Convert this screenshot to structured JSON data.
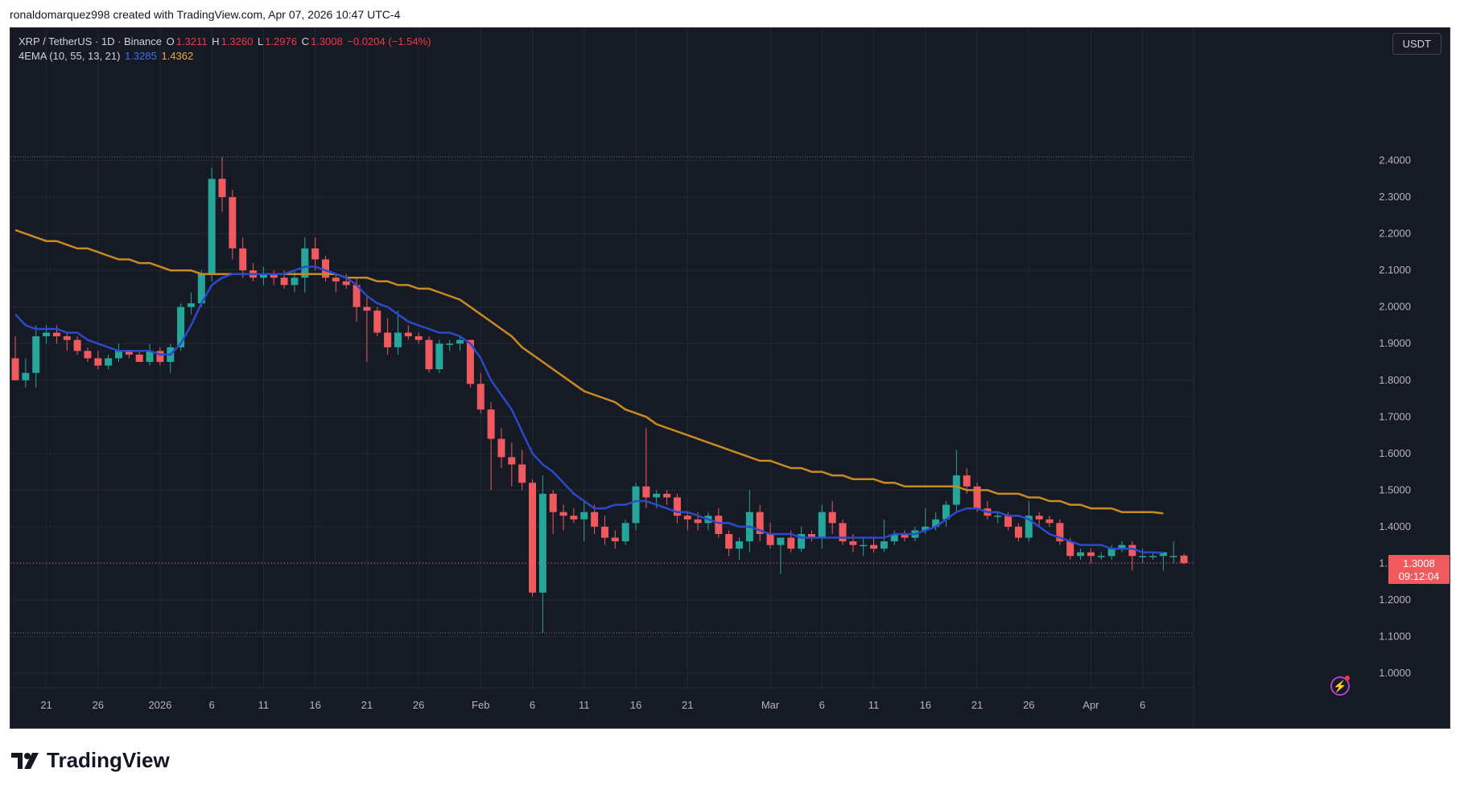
{
  "header": {
    "attribution": "ronaldomarquez998 created with TradingView.com, Apr 07, 2026 10:47 UTC-4"
  },
  "legend": {
    "symbol": "XRP / TetherUS · 1D · Binance",
    "o_label": "O",
    "o_value": "1.3211",
    "h_label": "H",
    "h_value": "1.3260",
    "l_label": "L",
    "l_value": "1.2976",
    "c_label": "C",
    "c_value": "1.3008",
    "change": "−0.0204 (−1.54%)",
    "indicator": "4EMA (10, 55, 13, 21)",
    "ema_fast": "1.3285",
    "ema_slow": "1.4362"
  },
  "currency": "USDT",
  "price_tag": {
    "price": "1.3008",
    "countdown": "09:12:04"
  },
  "branding": {
    "logo_text": "TradingView"
  },
  "colors": {
    "up": "#26a69a",
    "down": "#f05a5e",
    "ema_fast": "#2b4acb",
    "ema_slow": "#c98a1f",
    "background": "#161a25"
  },
  "chart_data": {
    "type": "candlestick",
    "y_ticks": [
      "1.0000",
      "1.1000",
      "1.2000",
      "1.3000",
      "1.4000",
      "1.5000",
      "1.6000",
      "1.7000",
      "1.8000",
      "1.9000",
      "2.0000",
      "2.1000",
      "2.2000",
      "2.3000",
      "2.4000"
    ],
    "ylim": [
      1.0,
      2.5
    ],
    "x_ticks": [
      {
        "label": "21",
        "index": 3
      },
      {
        "label": "26",
        "index": 8
      },
      {
        "label": "2026",
        "index": 14
      },
      {
        "label": "6",
        "index": 19
      },
      {
        "label": "11",
        "index": 24
      },
      {
        "label": "16",
        "index": 29
      },
      {
        "label": "21",
        "index": 34
      },
      {
        "label": "26",
        "index": 39
      },
      {
        "label": "Feb",
        "index": 45
      },
      {
        "label": "6",
        "index": 50
      },
      {
        "label": "11",
        "index": 55
      },
      {
        "label": "16",
        "index": 60
      },
      {
        "label": "21",
        "index": 65
      },
      {
        "label": "Mar",
        "index": 73
      },
      {
        "label": "6",
        "index": 78
      },
      {
        "label": "11",
        "index": 83
      },
      {
        "label": "16",
        "index": 88
      },
      {
        "label": "21",
        "index": 93
      },
      {
        "label": "26",
        "index": 98
      },
      {
        "label": "Apr",
        "index": 104
      },
      {
        "label": "6",
        "index": 109
      }
    ],
    "candles": [
      [
        1.86,
        1.92,
        1.8,
        1.8
      ],
      [
        1.8,
        1.86,
        1.78,
        1.82
      ],
      [
        1.82,
        1.95,
        1.78,
        1.92
      ],
      [
        1.92,
        1.95,
        1.9,
        1.93
      ],
      [
        1.93,
        1.95,
        1.9,
        1.92
      ],
      [
        1.92,
        1.93,
        1.88,
        1.91
      ],
      [
        1.91,
        1.92,
        1.87,
        1.88
      ],
      [
        1.88,
        1.89,
        1.85,
        1.86
      ],
      [
        1.86,
        1.88,
        1.83,
        1.84
      ],
      [
        1.84,
        1.87,
        1.83,
        1.86
      ],
      [
        1.86,
        1.9,
        1.85,
        1.88
      ],
      [
        1.88,
        1.88,
        1.86,
        1.87
      ],
      [
        1.87,
        1.88,
        1.85,
        1.85
      ],
      [
        1.85,
        1.9,
        1.84,
        1.88
      ],
      [
        1.88,
        1.89,
        1.84,
        1.85
      ],
      [
        1.85,
        1.9,
        1.82,
        1.89
      ],
      [
        1.89,
        2.01,
        1.88,
        2.0
      ],
      [
        2.0,
        2.04,
        1.98,
        2.01
      ],
      [
        2.01,
        2.1,
        2.0,
        2.09
      ],
      [
        2.09,
        2.38,
        2.07,
        2.35
      ],
      [
        2.35,
        2.41,
        2.26,
        2.3
      ],
      [
        2.3,
        2.32,
        2.13,
        2.16
      ],
      [
        2.16,
        2.19,
        2.08,
        2.1
      ],
      [
        2.1,
        2.12,
        2.07,
        2.08
      ],
      [
        2.08,
        2.11,
        2.06,
        2.09
      ],
      [
        2.09,
        2.1,
        2.06,
        2.08
      ],
      [
        2.08,
        2.1,
        2.05,
        2.06
      ],
      [
        2.06,
        2.1,
        2.04,
        2.08
      ],
      [
        2.08,
        2.19,
        2.04,
        2.16
      ],
      [
        2.16,
        2.19,
        2.1,
        2.13
      ],
      [
        2.13,
        2.14,
        2.07,
        2.08
      ],
      [
        2.08,
        2.09,
        2.04,
        2.07
      ],
      [
        2.07,
        2.09,
        2.05,
        2.06
      ],
      [
        2.06,
        2.08,
        1.96,
        2.0
      ],
      [
        2.0,
        2.03,
        1.85,
        1.99
      ],
      [
        1.99,
        2.0,
        1.92,
        1.93
      ],
      [
        1.93,
        1.97,
        1.87,
        1.89
      ],
      [
        1.89,
        1.99,
        1.87,
        1.93
      ],
      [
        1.93,
        1.95,
        1.91,
        1.92
      ],
      [
        1.92,
        1.93,
        1.9,
        1.91
      ],
      [
        1.91,
        1.92,
        1.82,
        1.83
      ],
      [
        1.83,
        1.91,
        1.82,
        1.9
      ],
      [
        1.9,
        1.91,
        1.88,
        1.9
      ],
      [
        1.9,
        1.92,
        1.88,
        1.91
      ],
      [
        1.91,
        1.91,
        1.78,
        1.79
      ],
      [
        1.79,
        1.82,
        1.71,
        1.72
      ],
      [
        1.72,
        1.74,
        1.5,
        1.64
      ],
      [
        1.64,
        1.67,
        1.56,
        1.59
      ],
      [
        1.59,
        1.63,
        1.51,
        1.57
      ],
      [
        1.57,
        1.61,
        1.5,
        1.52
      ],
      [
        1.52,
        1.53,
        1.21,
        1.22
      ],
      [
        1.22,
        1.54,
        1.11,
        1.49
      ],
      [
        1.49,
        1.5,
        1.38,
        1.44
      ],
      [
        1.44,
        1.46,
        1.39,
        1.43
      ],
      [
        1.43,
        1.45,
        1.41,
        1.42
      ],
      [
        1.42,
        1.47,
        1.36,
        1.44
      ],
      [
        1.44,
        1.46,
        1.38,
        1.4
      ],
      [
        1.4,
        1.43,
        1.35,
        1.37
      ],
      [
        1.37,
        1.39,
        1.34,
        1.36
      ],
      [
        1.36,
        1.42,
        1.35,
        1.41
      ],
      [
        1.41,
        1.52,
        1.39,
        1.51
      ],
      [
        1.51,
        1.67,
        1.45,
        1.48
      ],
      [
        1.48,
        1.5,
        1.45,
        1.49
      ],
      [
        1.49,
        1.5,
        1.46,
        1.48
      ],
      [
        1.48,
        1.49,
        1.41,
        1.43
      ],
      [
        1.43,
        1.44,
        1.39,
        1.42
      ],
      [
        1.42,
        1.44,
        1.39,
        1.41
      ],
      [
        1.41,
        1.44,
        1.39,
        1.43
      ],
      [
        1.43,
        1.45,
        1.37,
        1.38
      ],
      [
        1.38,
        1.39,
        1.32,
        1.34
      ],
      [
        1.34,
        1.37,
        1.31,
        1.36
      ],
      [
        1.36,
        1.5,
        1.33,
        1.44
      ],
      [
        1.44,
        1.46,
        1.36,
        1.38
      ],
      [
        1.38,
        1.41,
        1.34,
        1.35
      ],
      [
        1.35,
        1.36,
        1.27,
        1.37
      ],
      [
        1.37,
        1.39,
        1.33,
        1.34
      ],
      [
        1.34,
        1.4,
        1.33,
        1.38
      ],
      [
        1.38,
        1.39,
        1.36,
        1.37
      ],
      [
        1.37,
        1.46,
        1.34,
        1.44
      ],
      [
        1.44,
        1.47,
        1.38,
        1.41
      ],
      [
        1.41,
        1.42,
        1.35,
        1.36
      ],
      [
        1.36,
        1.38,
        1.33,
        1.35
      ],
      [
        1.35,
        1.37,
        1.32,
        1.35
      ],
      [
        1.35,
        1.37,
        1.33,
        1.34
      ],
      [
        1.34,
        1.42,
        1.33,
        1.36
      ],
      [
        1.36,
        1.39,
        1.35,
        1.38
      ],
      [
        1.38,
        1.39,
        1.36,
        1.37
      ],
      [
        1.37,
        1.4,
        1.36,
        1.39
      ],
      [
        1.39,
        1.45,
        1.38,
        1.4
      ],
      [
        1.4,
        1.44,
        1.39,
        1.42
      ],
      [
        1.42,
        1.47,
        1.4,
        1.46
      ],
      [
        1.46,
        1.61,
        1.44,
        1.54
      ],
      [
        1.54,
        1.56,
        1.49,
        1.51
      ],
      [
        1.51,
        1.52,
        1.44,
        1.45
      ],
      [
        1.45,
        1.47,
        1.42,
        1.43
      ],
      [
        1.43,
        1.44,
        1.41,
        1.43
      ],
      [
        1.43,
        1.44,
        1.39,
        1.4
      ],
      [
        1.4,
        1.41,
        1.36,
        1.37
      ],
      [
        1.37,
        1.47,
        1.36,
        1.43
      ],
      [
        1.43,
        1.44,
        1.4,
        1.42
      ],
      [
        1.42,
        1.43,
        1.4,
        1.41
      ],
      [
        1.41,
        1.42,
        1.35,
        1.36
      ],
      [
        1.36,
        1.37,
        1.31,
        1.32
      ],
      [
        1.32,
        1.34,
        1.31,
        1.33
      ],
      [
        1.33,
        1.34,
        1.3,
        1.32
      ],
      [
        1.32,
        1.33,
        1.31,
        1.32
      ],
      [
        1.32,
        1.35,
        1.31,
        1.34
      ],
      [
        1.34,
        1.36,
        1.33,
        1.35
      ],
      [
        1.35,
        1.36,
        1.28,
        1.32
      ],
      [
        1.32,
        1.34,
        1.3,
        1.32
      ],
      [
        1.32,
        1.33,
        1.31,
        1.32
      ],
      [
        1.32,
        1.33,
        1.28,
        1.33
      ],
      [
        1.32,
        1.36,
        1.3,
        1.32
      ],
      [
        1.3211,
        1.326,
        1.2976,
        1.3008
      ]
    ],
    "ema_fast": [
      1.98,
      1.95,
      1.94,
      1.94,
      1.94,
      1.93,
      1.93,
      1.91,
      1.9,
      1.89,
      1.88,
      1.88,
      1.88,
      1.88,
      1.87,
      1.87,
      1.9,
      1.95,
      2.01,
      2.06,
      2.08,
      2.09,
      2.09,
      2.09,
      2.09,
      2.09,
      2.09,
      2.1,
      2.11,
      2.11,
      2.1,
      2.09,
      2.08,
      2.06,
      2.03,
      2.01,
      2.0,
      1.98,
      1.96,
      1.95,
      1.94,
      1.93,
      1.93,
      1.92,
      1.9,
      1.86,
      1.8,
      1.76,
      1.72,
      1.66,
      1.6,
      1.57,
      1.55,
      1.52,
      1.49,
      1.47,
      1.45,
      1.45,
      1.46,
      1.46,
      1.47,
      1.47,
      1.46,
      1.45,
      1.44,
      1.44,
      1.43,
      1.42,
      1.41,
      1.41,
      1.4,
      1.4,
      1.39,
      1.38,
      1.38,
      1.38,
      1.37,
      1.37,
      1.37,
      1.37,
      1.37,
      1.37,
      1.37,
      1.37,
      1.37,
      1.38,
      1.38,
      1.38,
      1.39,
      1.4,
      1.42,
      1.44,
      1.45,
      1.45,
      1.44,
      1.44,
      1.43,
      1.43,
      1.42,
      1.4,
      1.38,
      1.37,
      1.36,
      1.35,
      1.35,
      1.35,
      1.34,
      1.34,
      1.34,
      1.33,
      1.33,
      1.3285
    ],
    "ema_slow": [
      2.21,
      2.2,
      2.19,
      2.18,
      2.18,
      2.17,
      2.16,
      2.16,
      2.15,
      2.14,
      2.13,
      2.13,
      2.12,
      2.12,
      2.11,
      2.1,
      2.1,
      2.1,
      2.09,
      2.09,
      2.09,
      2.09,
      2.09,
      2.09,
      2.09,
      2.09,
      2.09,
      2.09,
      2.09,
      2.09,
      2.09,
      2.09,
      2.08,
      2.08,
      2.08,
      2.07,
      2.07,
      2.06,
      2.06,
      2.05,
      2.05,
      2.04,
      2.03,
      2.02,
      2.0,
      1.98,
      1.96,
      1.94,
      1.92,
      1.89,
      1.87,
      1.85,
      1.83,
      1.81,
      1.79,
      1.77,
      1.76,
      1.75,
      1.74,
      1.72,
      1.71,
      1.7,
      1.68,
      1.67,
      1.66,
      1.65,
      1.64,
      1.63,
      1.62,
      1.61,
      1.6,
      1.59,
      1.58,
      1.58,
      1.57,
      1.56,
      1.56,
      1.55,
      1.55,
      1.54,
      1.54,
      1.53,
      1.53,
      1.53,
      1.52,
      1.52,
      1.51,
      1.51,
      1.51,
      1.51,
      1.51,
      1.51,
      1.5,
      1.5,
      1.5,
      1.49,
      1.49,
      1.49,
      1.48,
      1.48,
      1.47,
      1.47,
      1.46,
      1.46,
      1.45,
      1.45,
      1.45,
      1.44,
      1.44,
      1.44,
      1.44,
      1.4362
    ]
  }
}
